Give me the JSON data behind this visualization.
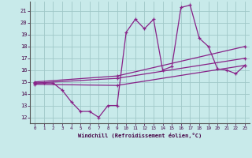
{
  "xlabel": "Windchill (Refroidissement éolien,°C)",
  "xlim": [
    -0.5,
    23.5
  ],
  "ylim": [
    11.5,
    21.8
  ],
  "yticks": [
    12,
    13,
    14,
    15,
    16,
    17,
    18,
    19,
    20,
    21
  ],
  "xticks": [
    0,
    1,
    2,
    3,
    4,
    5,
    6,
    7,
    8,
    9,
    10,
    11,
    12,
    13,
    14,
    15,
    16,
    17,
    18,
    19,
    20,
    21,
    22,
    23
  ],
  "bg_color": "#c8eaea",
  "line_color": "#882288",
  "grid_color": "#a0c8c8",
  "series1_x": [
    0,
    1,
    2,
    3,
    4,
    5,
    6,
    7,
    8,
    9,
    10,
    11,
    12,
    13,
    14,
    15,
    16,
    17,
    18,
    19,
    20,
    21,
    22,
    23
  ],
  "series1_y": [
    14.9,
    14.9,
    14.9,
    14.3,
    13.3,
    12.5,
    12.5,
    12.0,
    13.0,
    13.0,
    19.2,
    20.3,
    19.5,
    20.3,
    16.0,
    16.3,
    21.3,
    21.5,
    18.7,
    18.0,
    16.1,
    16.0,
    15.7,
    16.4
  ],
  "series2_x": [
    0,
    9,
    23
  ],
  "series2_y": [
    15.0,
    15.5,
    18.0
  ],
  "series3_x": [
    0,
    9,
    23
  ],
  "series3_y": [
    14.9,
    15.3,
    17.0
  ],
  "series4_x": [
    0,
    9,
    23
  ],
  "series4_y": [
    14.8,
    14.7,
    16.4
  ]
}
